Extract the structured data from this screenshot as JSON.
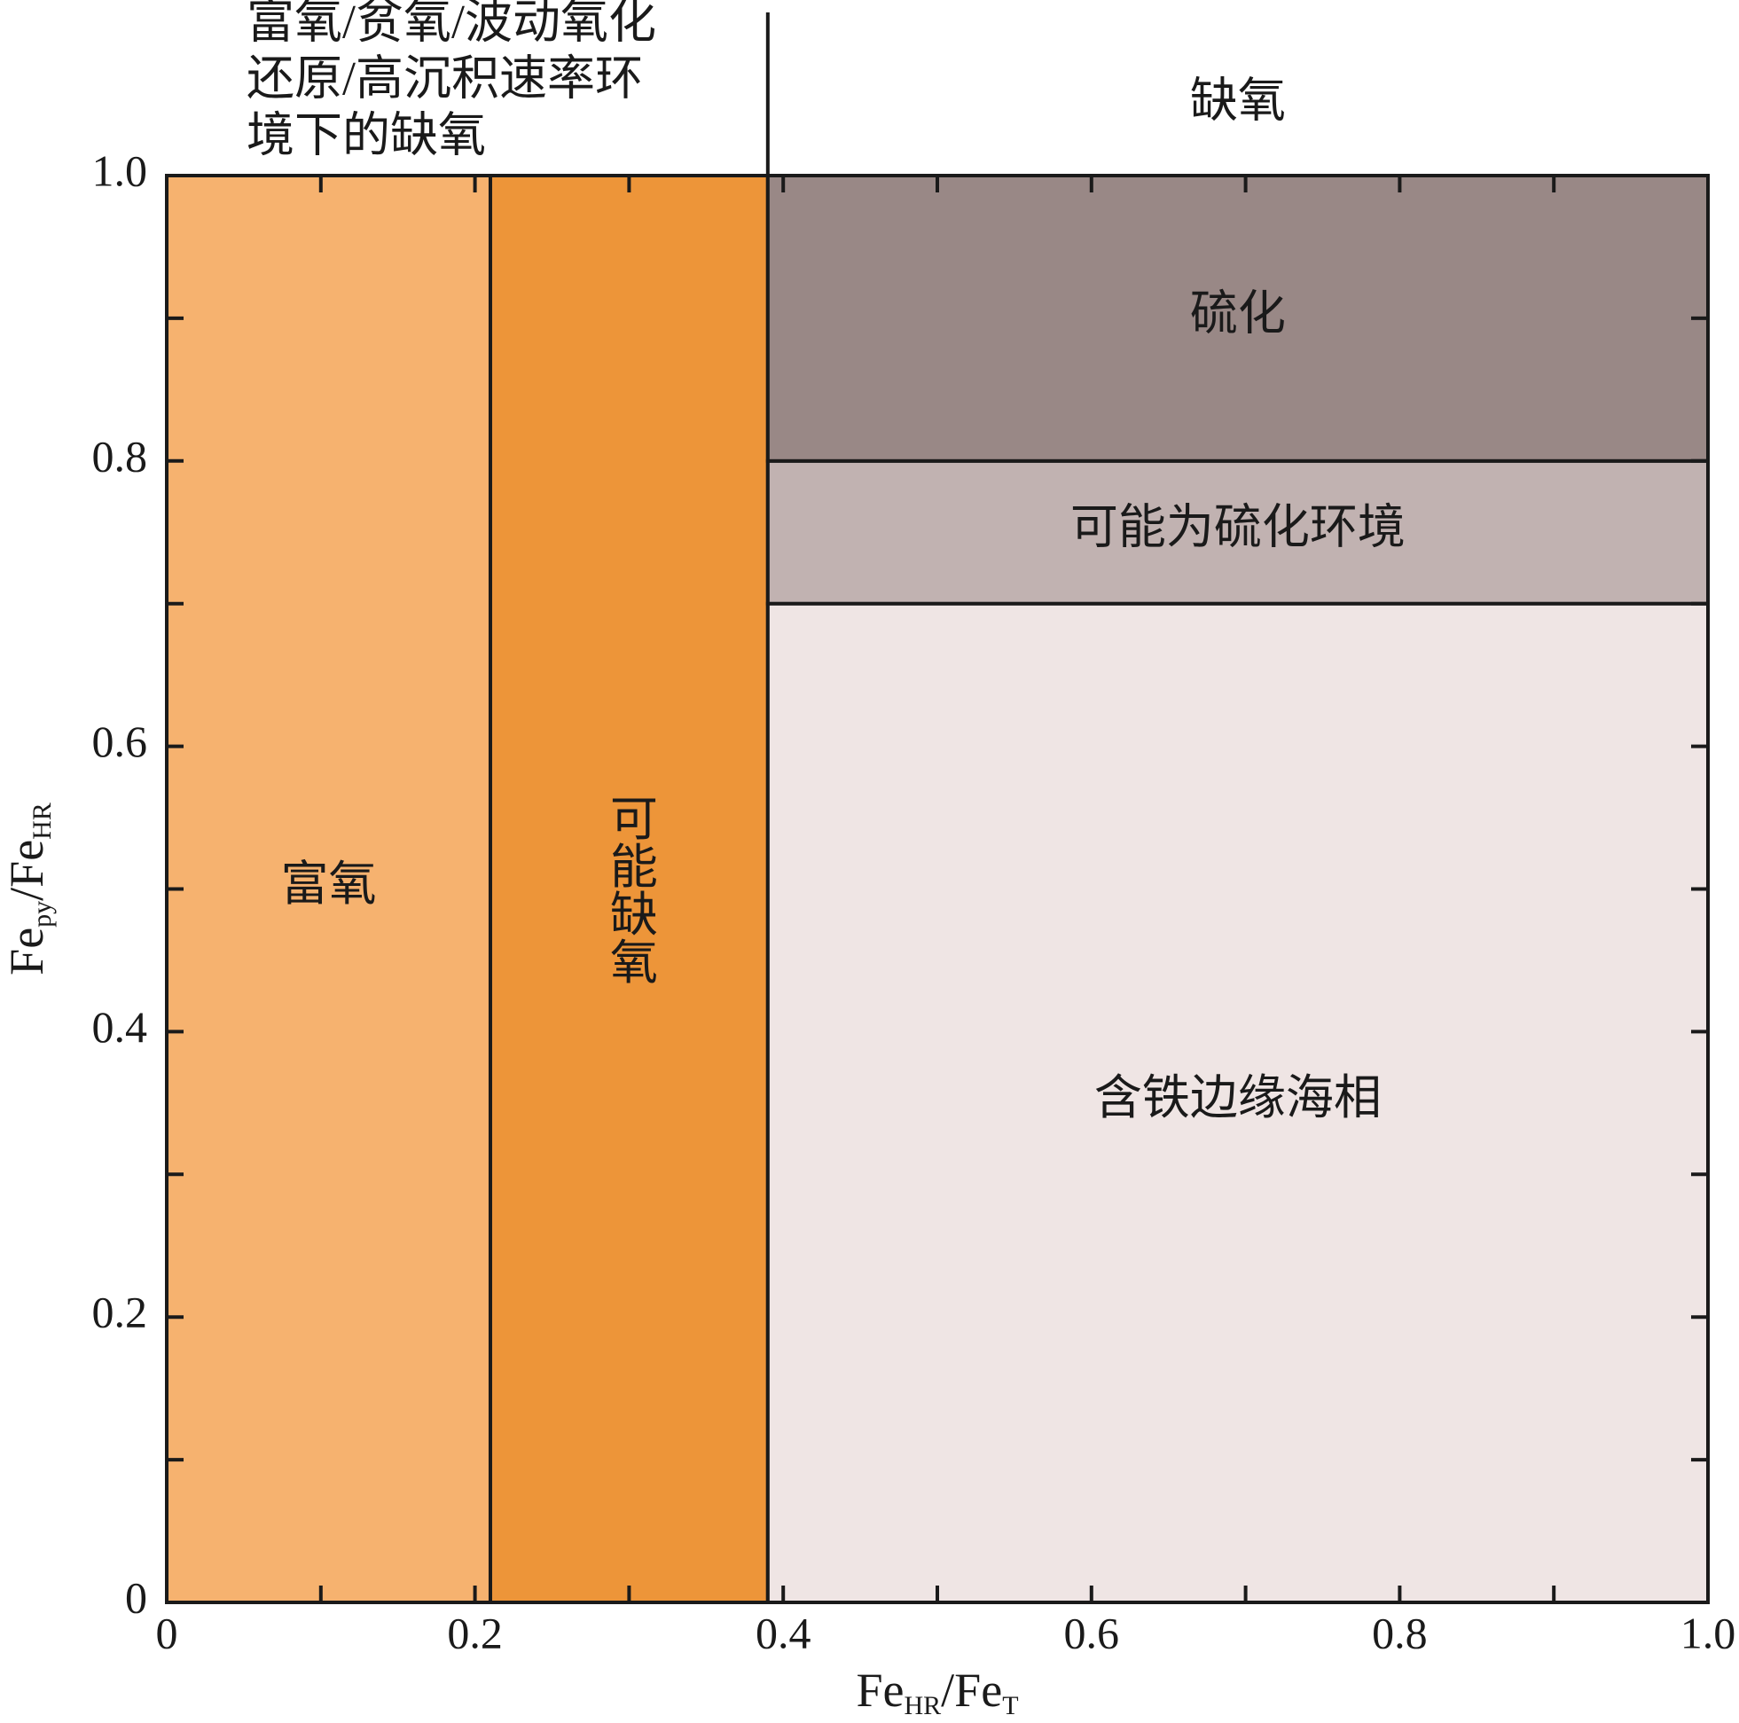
{
  "chart_data": {
    "type": "region",
    "annotations": [
      "富氧/贫氧/波动氧化",
      "还原/高沉积速率环",
      "境下的缺氧"
    ],
    "top_label": "缺氧",
    "divider_x": 0.39,
    "xlabel": [
      "Fe",
      "HR",
      "/Fe",
      "T"
    ],
    "ylabel": [
      "Fe",
      "py",
      "/Fe",
      "HR"
    ],
    "xlim": [
      0,
      1
    ],
    "ylim": [
      0,
      1
    ],
    "xticks": [
      0,
      0.2,
      0.4,
      0.6,
      0.8,
      {
        "value": 1,
        "label": "1.0"
      }
    ],
    "yticks": [
      0,
      0.2,
      0.4,
      0.6,
      0.8,
      {
        "value": 1,
        "label": "1.0"
      }
    ],
    "xminor": [
      0.1,
      0.3,
      0.5,
      0.7,
      0.9
    ],
    "yminor": [
      0.1,
      0.3,
      0.5,
      0.7,
      0.9
    ],
    "regions": [
      {
        "label": "富氧",
        "color": "#f6b26f",
        "x": [
          0,
          0.21
        ],
        "y": [
          0,
          1
        ]
      },
      {
        "label": "可能缺氧",
        "color": "#ed9539",
        "x": [
          0.21,
          0.39
        ],
        "y": [
          0,
          1
        ],
        "vertical": true
      },
      {
        "label": "含铁边缘海相",
        "color": "#efe5e4",
        "x": [
          0.39,
          1
        ],
        "y": [
          0,
          0.7
        ]
      },
      {
        "label": "可能为硫化环境",
        "color": "#c1b2b1",
        "x": [
          0.39,
          1
        ],
        "y": [
          0.7,
          0.8
        ]
      },
      {
        "label": "硫化",
        "color": "#998886",
        "x": [
          0.39,
          1
        ],
        "y": [
          0.8,
          1
        ]
      }
    ]
  }
}
